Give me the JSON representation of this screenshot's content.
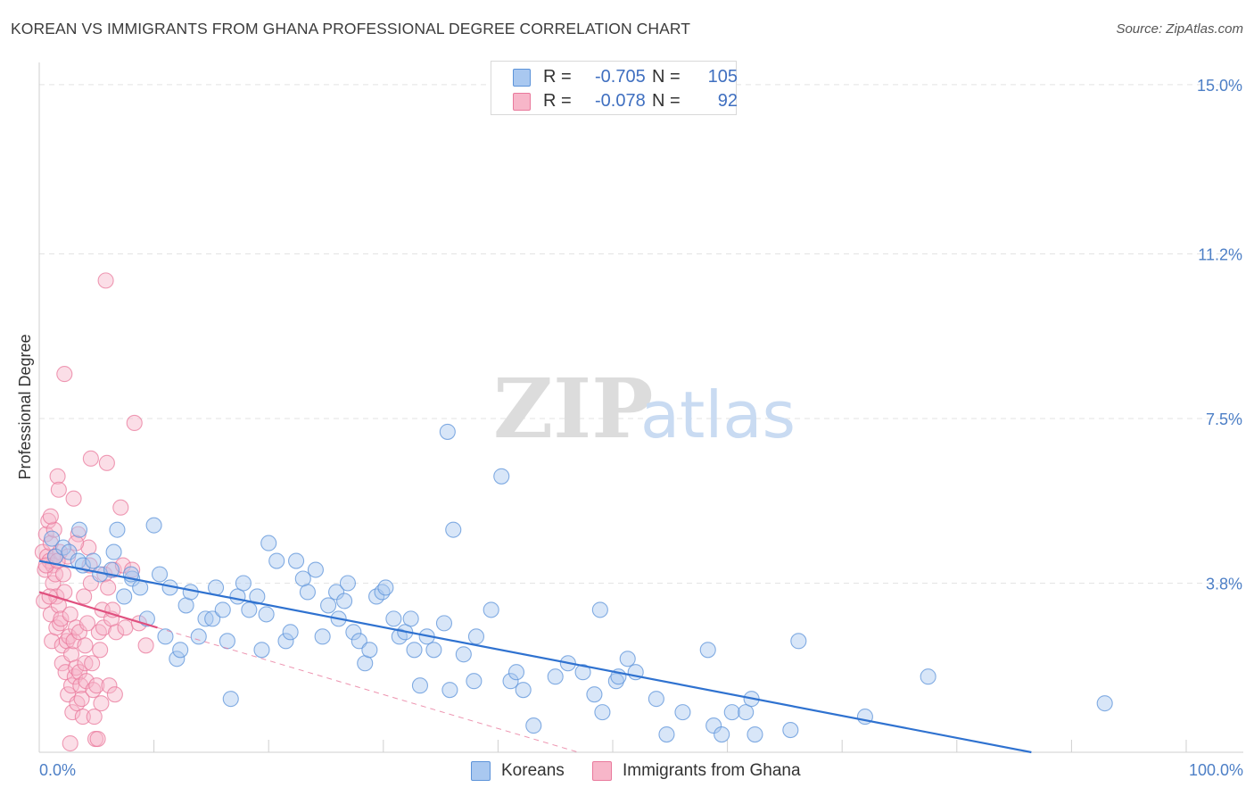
{
  "title": "KOREAN VS IMMIGRANTS FROM GHANA PROFESSIONAL DEGREE CORRELATION CHART",
  "source": "Source: ZipAtlas.com",
  "watermark": {
    "zip": "ZIP",
    "atlas": "atlas"
  },
  "legend": [
    {
      "r_label": "R =",
      "r_value": "-0.705",
      "n_label": "N =",
      "n_value": "105"
    },
    {
      "r_label": "R =",
      "r_value": "-0.078",
      "n_label": "N =",
      "n_value": "92"
    }
  ],
  "bottom_legend": [
    "Koreans",
    "Immigrants from Ghana"
  ],
  "colors": {
    "koreans_fill": "#a9c8f0",
    "koreans_stroke": "#5c93d9",
    "koreans_line": "#2f72d0",
    "ghana_fill": "#f7b6c9",
    "ghana_stroke": "#e9799c",
    "ghana_line": "#e0507f",
    "tick_text": "#4d7fc6"
  },
  "chart_data": {
    "type": "scatter",
    "title": "KOREAN VS IMMIGRANTS FROM GHANA PROFESSIONAL DEGREE CORRELATION CHART",
    "xlabel": "",
    "ylabel": "Professional Degree",
    "xlim": [
      0,
      100
    ],
    "ylim": [
      0,
      15.5
    ],
    "x_tick_labels": [
      "0.0%",
      "100.0%"
    ],
    "y_ticks": [
      3.8,
      7.5,
      11.2,
      15.0
    ],
    "y_tick_labels": [
      "3.8%",
      "7.5%",
      "11.2%",
      "15.0%"
    ],
    "grid": true,
    "series": [
      {
        "name": "Koreans",
        "R": -0.705,
        "N": 105,
        "trend": {
          "x0": 0,
          "y0": 4.3,
          "x1": 86.5,
          "y1": 0.0,
          "dashed_extension": false
        },
        "points": [
          [
            1.1,
            4.8
          ],
          [
            1.4,
            4.4
          ],
          [
            2.1,
            4.6
          ],
          [
            2.6,
            4.5
          ],
          [
            3.4,
            4.3
          ],
          [
            3.5,
            5.0
          ],
          [
            3.8,
            4.2
          ],
          [
            4.7,
            4.3
          ],
          [
            5.3,
            4.0
          ],
          [
            6.3,
            4.1
          ],
          [
            6.5,
            4.5
          ],
          [
            6.8,
            5.0
          ],
          [
            7.4,
            3.5
          ],
          [
            8.1,
            3.9
          ],
          [
            8.8,
            3.7
          ],
          [
            9.4,
            3.0
          ],
          [
            10.0,
            5.1
          ],
          [
            10.5,
            4.0
          ],
          [
            11.0,
            2.6
          ],
          [
            11.4,
            3.7
          ],
          [
            12.0,
            2.1
          ],
          [
            12.3,
            2.3
          ],
          [
            12.8,
            3.3
          ],
          [
            13.2,
            3.6
          ],
          [
            13.9,
            2.6
          ],
          [
            14.5,
            3.0
          ],
          [
            15.1,
            3.0
          ],
          [
            15.4,
            3.7
          ],
          [
            16.0,
            3.2
          ],
          [
            16.4,
            2.5
          ],
          [
            16.7,
            1.2
          ],
          [
            17.3,
            3.5
          ],
          [
            17.8,
            3.8
          ],
          [
            18.3,
            3.2
          ],
          [
            19.0,
            3.5
          ],
          [
            19.4,
            2.3
          ],
          [
            19.8,
            3.1
          ],
          [
            20.0,
            4.7
          ],
          [
            20.7,
            4.3
          ],
          [
            21.5,
            2.5
          ],
          [
            21.9,
            2.7
          ],
          [
            22.4,
            4.3
          ],
          [
            23.0,
            3.9
          ],
          [
            23.4,
            3.6
          ],
          [
            24.1,
            4.1
          ],
          [
            24.7,
            2.6
          ],
          [
            25.2,
            3.3
          ],
          [
            25.9,
            3.6
          ],
          [
            26.1,
            3.0
          ],
          [
            26.6,
            3.4
          ],
          [
            26.9,
            3.8
          ],
          [
            27.4,
            2.7
          ],
          [
            27.9,
            2.5
          ],
          [
            28.4,
            2.0
          ],
          [
            28.8,
            2.3
          ],
          [
            29.4,
            3.5
          ],
          [
            29.9,
            3.6
          ],
          [
            30.2,
            3.7
          ],
          [
            30.9,
            3.0
          ],
          [
            31.4,
            2.6
          ],
          [
            31.9,
            2.7
          ],
          [
            32.4,
            3.0
          ],
          [
            32.7,
            2.3
          ],
          [
            33.2,
            1.5
          ],
          [
            33.8,
            2.6
          ],
          [
            34.4,
            2.3
          ],
          [
            35.3,
            2.9
          ],
          [
            35.6,
            7.2
          ],
          [
            35.8,
            1.4
          ],
          [
            36.1,
            5.0
          ],
          [
            37.0,
            2.2
          ],
          [
            37.9,
            1.6
          ],
          [
            38.1,
            2.6
          ],
          [
            39.4,
            3.2
          ],
          [
            40.3,
            6.2
          ],
          [
            41.1,
            1.6
          ],
          [
            41.6,
            1.8
          ],
          [
            42.2,
            1.4
          ],
          [
            43.1,
            0.6
          ],
          [
            45.0,
            1.7
          ],
          [
            46.1,
            2.0
          ],
          [
            47.4,
            1.8
          ],
          [
            48.4,
            1.3
          ],
          [
            48.9,
            3.2
          ],
          [
            49.1,
            0.9
          ],
          [
            50.3,
            1.6
          ],
          [
            50.5,
            1.7
          ],
          [
            51.3,
            2.1
          ],
          [
            52.0,
            1.8
          ],
          [
            53.8,
            1.2
          ],
          [
            54.7,
            0.4
          ],
          [
            56.1,
            0.9
          ],
          [
            58.3,
            2.3
          ],
          [
            58.8,
            0.6
          ],
          [
            59.5,
            0.4
          ],
          [
            60.4,
            0.9
          ],
          [
            61.6,
            0.9
          ],
          [
            62.1,
            1.2
          ],
          [
            62.4,
            0.4
          ],
          [
            65.5,
            0.5
          ],
          [
            66.2,
            2.5
          ],
          [
            72.0,
            0.8
          ],
          [
            77.5,
            1.7
          ],
          [
            92.9,
            1.1
          ],
          [
            8.0,
            4.0
          ]
        ]
      },
      {
        "name": "Immigrants from Ghana",
        "R": -0.078,
        "N": 92,
        "trend": {
          "x0": 0,
          "y0": 3.6,
          "x1": 10.3,
          "y1": 2.8,
          "dashed_to": [
            47.0,
            0.0
          ]
        },
        "points": [
          [
            0.3,
            4.5
          ],
          [
            0.4,
            3.4
          ],
          [
            0.5,
            4.1
          ],
          [
            0.6,
            4.9
          ],
          [
            0.7,
            4.4
          ],
          [
            0.8,
            5.2
          ],
          [
            0.9,
            4.3
          ],
          [
            1.0,
            4.7
          ],
          [
            1.0,
            3.1
          ],
          [
            1.1,
            2.5
          ],
          [
            1.2,
            4.2
          ],
          [
            1.2,
            3.8
          ],
          [
            1.3,
            5.0
          ],
          [
            1.4,
            4.0
          ],
          [
            1.5,
            3.5
          ],
          [
            1.5,
            2.8
          ],
          [
            1.6,
            6.2
          ],
          [
            1.7,
            5.9
          ],
          [
            1.7,
            3.3
          ],
          [
            1.8,
            4.5
          ],
          [
            1.8,
            2.9
          ],
          [
            1.9,
            3.0
          ],
          [
            2.0,
            2.4
          ],
          [
            2.0,
            2.0
          ],
          [
            2.1,
            4.0
          ],
          [
            2.2,
            3.6
          ],
          [
            2.3,
            1.8
          ],
          [
            2.4,
            2.5
          ],
          [
            2.5,
            1.3
          ],
          [
            2.6,
            2.6
          ],
          [
            2.7,
            3.1
          ],
          [
            2.7,
            0.2
          ],
          [
            2.8,
            2.2
          ],
          [
            2.8,
            1.5
          ],
          [
            2.9,
            0.9
          ],
          [
            3.0,
            5.7
          ],
          [
            3.0,
            2.5
          ],
          [
            3.1,
            1.7
          ],
          [
            3.2,
            2.8
          ],
          [
            3.2,
            1.9
          ],
          [
            3.3,
            1.1
          ],
          [
            3.4,
            4.9
          ],
          [
            3.5,
            2.7
          ],
          [
            3.5,
            1.8
          ],
          [
            3.6,
            1.5
          ],
          [
            3.7,
            1.2
          ],
          [
            3.8,
            0.8
          ],
          [
            3.9,
            3.5
          ],
          [
            4.0,
            2.4
          ],
          [
            4.0,
            2.0
          ],
          [
            4.1,
            1.6
          ],
          [
            4.3,
            4.6
          ],
          [
            4.4,
            4.2
          ],
          [
            4.5,
            3.8
          ],
          [
            4.5,
            6.6
          ],
          [
            4.6,
            2.0
          ],
          [
            4.7,
            1.4
          ],
          [
            4.8,
            0.8
          ],
          [
            4.9,
            0.3
          ],
          [
            5.0,
            1.5
          ],
          [
            5.1,
            0.3
          ],
          [
            5.2,
            2.7
          ],
          [
            5.3,
            2.3
          ],
          [
            5.4,
            1.1
          ],
          [
            5.5,
            3.2
          ],
          [
            5.6,
            2.8
          ],
          [
            5.7,
            4.0
          ],
          [
            5.8,
            10.6
          ],
          [
            5.9,
            6.5
          ],
          [
            6.0,
            3.7
          ],
          [
            6.1,
            1.5
          ],
          [
            6.3,
            3.0
          ],
          [
            6.4,
            3.2
          ],
          [
            6.5,
            4.1
          ],
          [
            6.6,
            1.3
          ],
          [
            6.7,
            2.7
          ],
          [
            7.1,
            5.5
          ],
          [
            7.3,
            4.2
          ],
          [
            7.5,
            2.8
          ],
          [
            8.1,
            4.1
          ],
          [
            8.3,
            7.4
          ],
          [
            8.7,
            2.9
          ],
          [
            9.3,
            2.4
          ],
          [
            2.2,
            8.5
          ],
          [
            1.0,
            5.3
          ],
          [
            0.9,
            3.5
          ],
          [
            1.4,
            4.4
          ],
          [
            2.5,
            4.4
          ],
          [
            3.2,
            4.7
          ],
          [
            0.6,
            4.2
          ],
          [
            1.6,
            4.3
          ],
          [
            4.2,
            2.9
          ]
        ]
      }
    ]
  }
}
